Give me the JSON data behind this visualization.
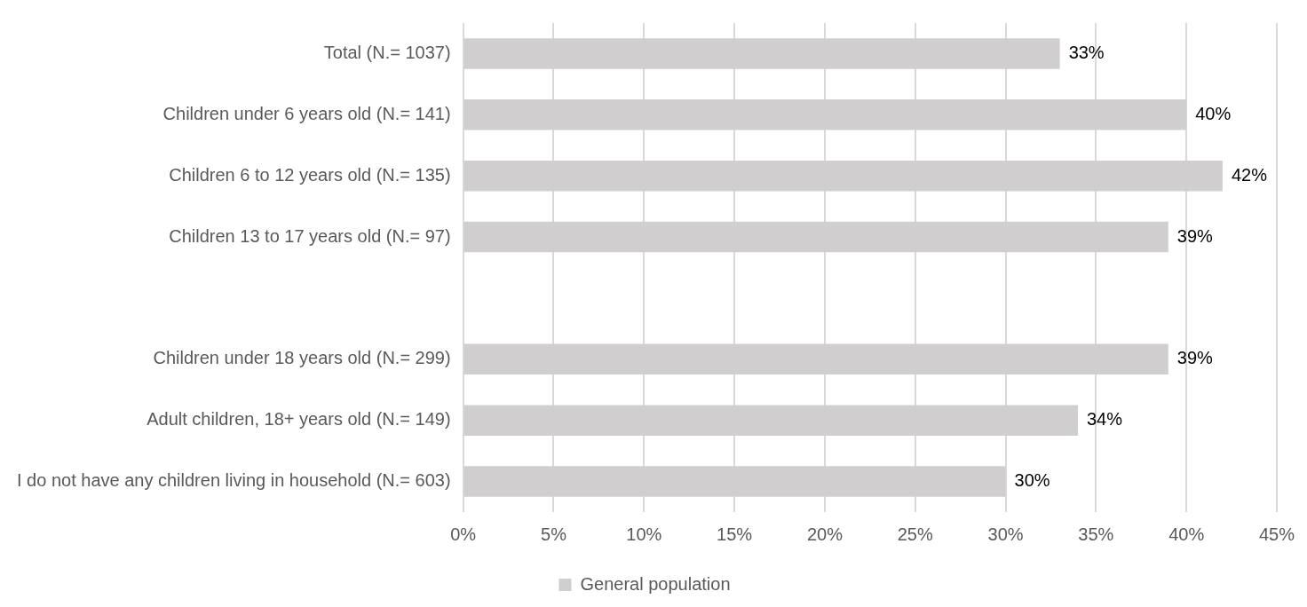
{
  "chart_data": {
    "type": "bar",
    "orientation": "horizontal",
    "categories": [
      "Total (N.= 1037)",
      "Children under 6 years old (N.= 141)",
      "Children 6 to 12 years old (N.= 135)",
      "Children 13 to 17 years old (N.= 97)",
      null,
      "Children under 18 years old (N.= 299)",
      "Adult children, 18+ years old (N.= 149)",
      "I do not have any children living in household (N.= 603)"
    ],
    "series": [
      {
        "name": "General population",
        "color": "#d0cece",
        "values": [
          33,
          40,
          42,
          39,
          null,
          39,
          34,
          30
        ],
        "value_labels": [
          "33%",
          "40%",
          "42%",
          "39%",
          null,
          "39%",
          "34%",
          "30%"
        ]
      }
    ],
    "xlim": [
      0,
      45
    ],
    "xticks": [
      {
        "value": 0,
        "label": "0%"
      },
      {
        "value": 5,
        "label": "5%"
      },
      {
        "value": 10,
        "label": "10%"
      },
      {
        "value": 15,
        "label": "15%"
      },
      {
        "value": 20,
        "label": "20%"
      },
      {
        "value": 25,
        "label": "25%"
      },
      {
        "value": 30,
        "label": "30%"
      },
      {
        "value": 35,
        "label": "35%"
      },
      {
        "value": 40,
        "label": "40%"
      },
      {
        "value": 45,
        "label": "45%"
      }
    ],
    "grid": "x",
    "legend": "bottom"
  }
}
